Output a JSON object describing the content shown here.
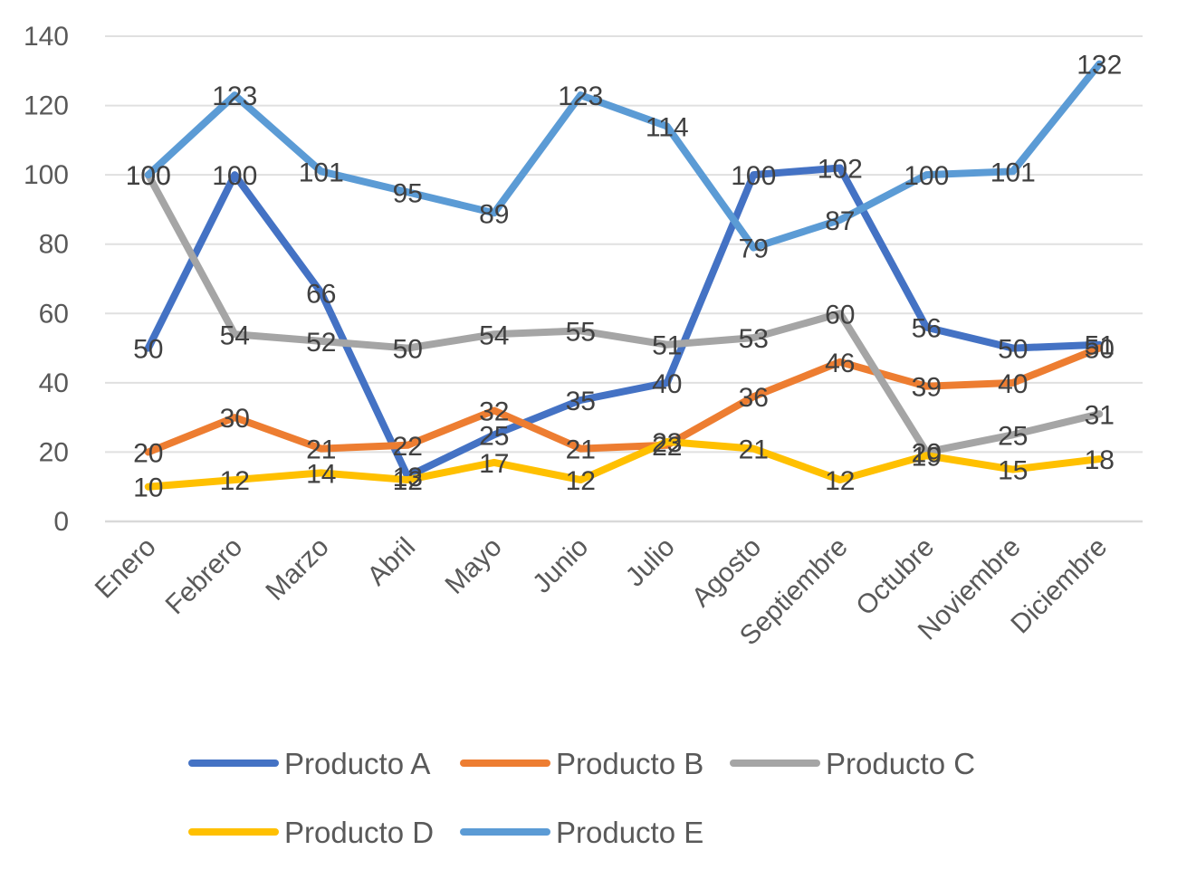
{
  "chart_data": {
    "type": "line",
    "title": "",
    "xlabel": "",
    "ylabel": "",
    "ylim": [
      0,
      140
    ],
    "yticks": [
      0,
      20,
      40,
      60,
      80,
      100,
      120,
      140
    ],
    "grid": true,
    "legend_position": "bottom",
    "data_labels": true,
    "categories": [
      "Enero",
      "Febrero",
      "Marzo",
      "Abril",
      "Mayo",
      "Junio",
      "Julio",
      "Agosto",
      "Septiembre",
      "Octubre",
      "Noviembre",
      "Diciembre"
    ],
    "series": [
      {
        "name": "Producto A",
        "color": "#4472C4",
        "values": [
          50,
          100,
          66,
          13,
          25,
          35,
          40,
          100,
          102,
          56,
          50,
          51
        ]
      },
      {
        "name": "Producto B",
        "color": "#ED7D31",
        "values": [
          20,
          30,
          21,
          22,
          32,
          21,
          22,
          36,
          46,
          39,
          40,
          50
        ]
      },
      {
        "name": "Producto C",
        "color": "#A5A5A5",
        "values": [
          100,
          54,
          52,
          50,
          54,
          55,
          51,
          53,
          60,
          20,
          25,
          31
        ]
      },
      {
        "name": "Producto D",
        "color": "#FFC000",
        "values": [
          10,
          12,
          14,
          12,
          17,
          12,
          23,
          21,
          12,
          19,
          15,
          18
        ]
      },
      {
        "name": "Producto E",
        "color": "#5B9BD5",
        "values": [
          100,
          123,
          101,
          95,
          89,
          123,
          114,
          79,
          87,
          100,
          101,
          132
        ]
      }
    ]
  }
}
